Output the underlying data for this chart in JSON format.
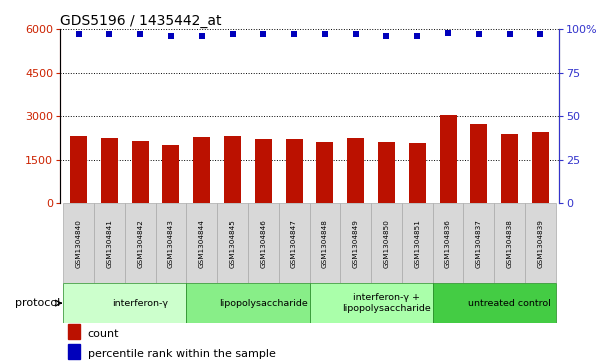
{
  "title": "GDS5196 / 1435442_at",
  "samples": [
    "GSM1304840",
    "GSM1304841",
    "GSM1304842",
    "GSM1304843",
    "GSM1304844",
    "GSM1304845",
    "GSM1304846",
    "GSM1304847",
    "GSM1304848",
    "GSM1304849",
    "GSM1304850",
    "GSM1304851",
    "GSM1304836",
    "GSM1304837",
    "GSM1304838",
    "GSM1304839"
  ],
  "counts": [
    2300,
    2250,
    2160,
    2000,
    2280,
    2330,
    2210,
    2230,
    2110,
    2250,
    2110,
    2060,
    3050,
    2720,
    2380,
    2440
  ],
  "percentiles": [
    97,
    97,
    97,
    96,
    96,
    97,
    97,
    97,
    97,
    97,
    96,
    96,
    98,
    97,
    97,
    97
  ],
  "bar_color": "#bb1100",
  "dot_color": "#0000bb",
  "ylim_left": [
    0,
    6000
  ],
  "ylim_right": [
    0,
    100
  ],
  "yticks_left": [
    0,
    1500,
    3000,
    4500,
    6000
  ],
  "yticks_right": [
    0,
    25,
    50,
    75,
    100
  ],
  "protocols": [
    {
      "label": "interferon-γ",
      "start": 0,
      "end": 4,
      "color": "#ccffcc"
    },
    {
      "label": "lipopolysaccharide",
      "start": 4,
      "end": 8,
      "color": "#88ee88"
    },
    {
      "label": "interferon-γ +\nlipopolysaccharide",
      "start": 8,
      "end": 12,
      "color": "#aaffaa"
    },
    {
      "label": "untreated control",
      "start": 12,
      "end": 16,
      "color": "#44cc44"
    }
  ],
  "legend_count_color": "#bb1100",
  "legend_pct_color": "#0000bb",
  "tick_label_color_left": "#cc2200",
  "tick_label_color_right": "#3333cc",
  "protocol_label": "protocol",
  "sample_box_color": "#d8d8d8",
  "sample_box_edge": "#aaaaaa"
}
